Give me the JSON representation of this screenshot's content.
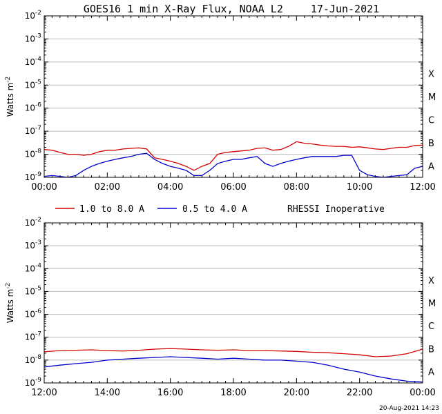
{
  "title": "GOES16 1 min X-Ray Flux, NOAA L2",
  "date": "17-Jun-2021",
  "footer": "20-Aug-2021 14:23",
  "rhessi_status": "RHESSI Inoperative",
  "ylabel": "Watts m",
  "ylabel_exp": "-2",
  "flare_classes": [
    "X",
    "M",
    "C",
    "B",
    "A"
  ],
  "y_ticks": [
    -9,
    -8,
    -7,
    -6,
    -5,
    -4,
    -3,
    -2
  ],
  "colors": {
    "long": "#d40000",
    "short": "#0000cc",
    "grid": "#bbbbbb",
    "axis": "#000000"
  },
  "chart_data": [
    {
      "type": "line",
      "title": "GOES16 1 min X-Ray Flux, NOAA L2",
      "x_unit": "hours UT, 17-Jun-2021",
      "xlim": [
        0,
        12
      ],
      "x_ticks": [
        "00:00",
        "02:00",
        "04:00",
        "06:00",
        "08:00",
        "10:00",
        "12:00"
      ],
      "ylabel": "Watts m-2",
      "y_scale": "log",
      "ylim": [
        1e-09,
        0.01
      ],
      "grid": true,
      "series": [
        {
          "name": "1.0 to 8.0 A",
          "color": "#d40000",
          "x": [
            0.0,
            0.25,
            0.5,
            0.75,
            1.0,
            1.25,
            1.5,
            1.75,
            2.0,
            2.25,
            2.5,
            2.75,
            3.0,
            3.25,
            3.5,
            3.75,
            4.0,
            4.25,
            4.5,
            4.75,
            5.0,
            5.25,
            5.5,
            5.75,
            6.0,
            6.25,
            6.5,
            6.75,
            7.0,
            7.25,
            7.5,
            7.75,
            8.0,
            8.25,
            8.5,
            8.75,
            9.0,
            9.25,
            9.5,
            9.75,
            10.0,
            10.25,
            10.5,
            10.75,
            11.0,
            11.25,
            11.5,
            11.75,
            12.0
          ],
          "values": [
            1.6e-08,
            1.5e-08,
            1.2e-08,
            1e-08,
            1e-08,
            9e-09,
            1e-08,
            1.3e-08,
            1.5e-08,
            1.5e-08,
            1.7e-08,
            1.8e-08,
            1.9e-08,
            1.7e-08,
            7e-09,
            6e-09,
            5e-09,
            4e-09,
            3e-09,
            2e-09,
            3e-09,
            4e-09,
            1e-08,
            1.2e-08,
            1.3e-08,
            1.4e-08,
            1.5e-08,
            1.8e-08,
            1.9e-08,
            1.5e-08,
            1.6e-08,
            2.2e-08,
            3.5e-08,
            3e-08,
            2.8e-08,
            2.5e-08,
            2.3e-08,
            2.2e-08,
            2.2e-08,
            2e-08,
            2.1e-08,
            1.9e-08,
            1.7e-08,
            1.6e-08,
            1.8e-08,
            2e-08,
            2e-08,
            2.4e-08,
            2.5e-08
          ]
        },
        {
          "name": "0.5 to 4.0 A",
          "color": "#0000cc",
          "x": [
            0.0,
            0.25,
            0.5,
            0.75,
            1.0,
            1.25,
            1.5,
            1.75,
            2.0,
            2.25,
            2.5,
            2.75,
            3.0,
            3.25,
            3.5,
            3.75,
            4.0,
            4.25,
            4.5,
            4.75,
            5.0,
            5.25,
            5.5,
            5.75,
            6.0,
            6.25,
            6.5,
            6.75,
            7.0,
            7.25,
            7.5,
            7.75,
            8.0,
            8.25,
            8.5,
            8.75,
            9.0,
            9.25,
            9.5,
            9.75,
            10.0,
            10.25,
            10.5,
            10.75,
            11.0,
            11.25,
            11.5,
            11.75,
            12.0
          ],
          "values": [
            1.1e-09,
            1.2e-09,
            1.1e-09,
            1e-09,
            1.2e-09,
            2e-09,
            3e-09,
            4e-09,
            5e-09,
            6e-09,
            7e-09,
            8e-09,
            1e-08,
            1.1e-08,
            6e-09,
            4e-09,
            3e-09,
            2.5e-09,
            2e-09,
            1.2e-09,
            1.2e-09,
            2e-09,
            4e-09,
            5e-09,
            6e-09,
            6e-09,
            7e-09,
            8e-09,
            4e-09,
            3e-09,
            4e-09,
            5e-09,
            6e-09,
            7e-09,
            8e-09,
            8e-09,
            8e-09,
            8e-09,
            9e-09,
            9e-09,
            2e-09,
            1.3e-09,
            1.1e-09,
            1e-09,
            1.1e-09,
            1.2e-09,
            1.3e-09,
            2.5e-09,
            3e-09
          ]
        }
      ]
    },
    {
      "type": "line",
      "x_unit": "hours UT, 17/18-Jun-2021",
      "xlim": [
        12,
        24
      ],
      "x_ticks": [
        "12:00",
        "14:00",
        "16:00",
        "18:00",
        "20:00",
        "22:00",
        "00:00"
      ],
      "ylabel": "Watts m-2",
      "y_scale": "log",
      "ylim": [
        1e-09,
        0.01
      ],
      "grid": true,
      "series": [
        {
          "name": "1.0 to 8.0 A",
          "color": "#d40000",
          "x": [
            12.0,
            12.5,
            13.0,
            13.5,
            14.0,
            14.5,
            15.0,
            15.5,
            16.0,
            16.5,
            17.0,
            17.5,
            18.0,
            18.5,
            19.0,
            19.5,
            20.0,
            20.5,
            21.0,
            21.5,
            22.0,
            22.5,
            23.0,
            23.5,
            24.0
          ],
          "values": [
            2.3e-08,
            2.6e-08,
            2.7e-08,
            2.8e-08,
            2.6e-08,
            2.5e-08,
            2.7e-08,
            3e-08,
            3.2e-08,
            3e-08,
            2.8e-08,
            2.7e-08,
            2.8e-08,
            2.6e-08,
            2.6e-08,
            2.5e-08,
            2.4e-08,
            2.2e-08,
            2.1e-08,
            1.9e-08,
            1.7e-08,
            1.4e-08,
            1.5e-08,
            1.9e-08,
            3e-08
          ]
        },
        {
          "name": "0.5 to 4.0 A",
          "color": "#0000cc",
          "x": [
            12.0,
            12.5,
            13.0,
            13.5,
            14.0,
            14.5,
            15.0,
            15.5,
            16.0,
            16.5,
            17.0,
            17.5,
            18.0,
            18.5,
            19.0,
            19.5,
            20.0,
            20.5,
            21.0,
            21.5,
            22.0,
            22.5,
            23.0,
            23.5,
            24.0
          ],
          "values": [
            5e-09,
            6e-09,
            7e-09,
            8e-09,
            1e-08,
            1.1e-08,
            1.2e-08,
            1.3e-08,
            1.4e-08,
            1.3e-08,
            1.2e-08,
            1.1e-08,
            1.2e-08,
            1.1e-08,
            1e-08,
            1e-08,
            9e-09,
            8e-09,
            6e-09,
            4e-09,
            3e-09,
            2e-09,
            1.5e-09,
            1.2e-09,
            1.1e-09
          ]
        }
      ]
    }
  ]
}
